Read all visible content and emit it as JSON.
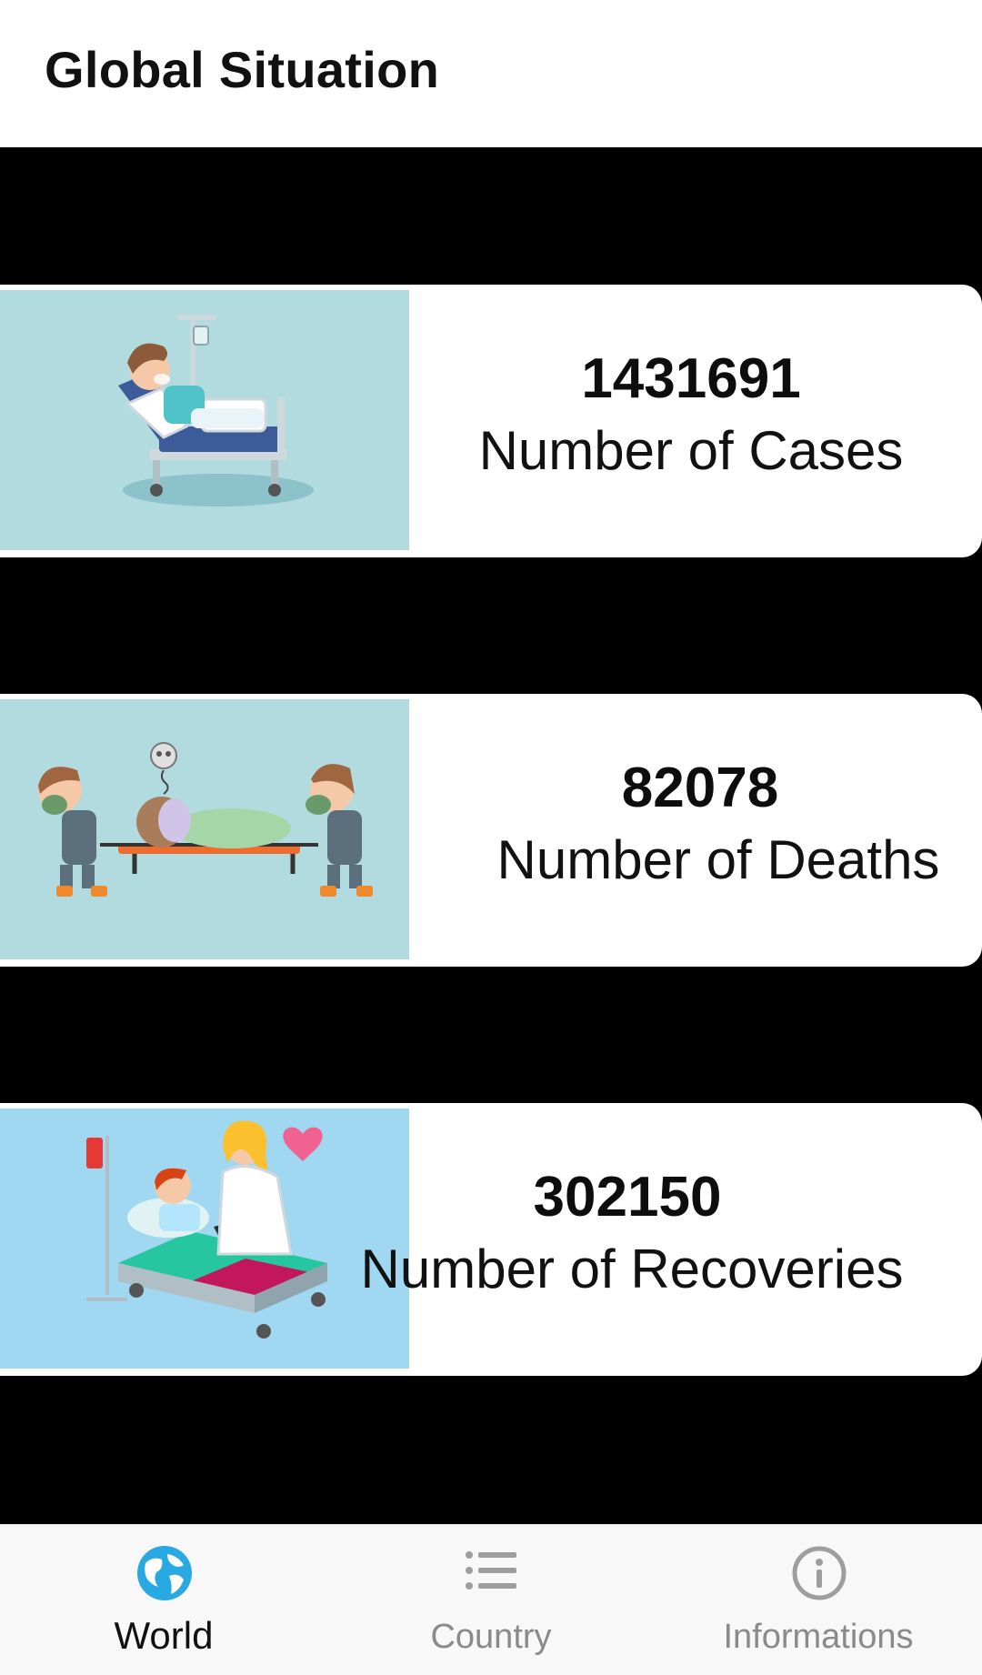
{
  "header": {
    "title": "Global Situation"
  },
  "cards": [
    {
      "value": "1431691",
      "label": "Number of Cases"
    },
    {
      "value": "82078",
      "label": "Number of Deaths"
    },
    {
      "value": "302150",
      "label": "Number of Recoveries"
    }
  ],
  "nav": {
    "items": [
      {
        "label": "World",
        "icon": "globe-icon",
        "active": true
      },
      {
        "label": "Country",
        "icon": "list-icon",
        "active": false
      },
      {
        "label": "Informations",
        "icon": "info-icon",
        "active": false
      }
    ]
  },
  "colors": {
    "active": "#29a9e1",
    "inactive": "#9e9e9e",
    "illustration_bg_1": "#b2dbe0",
    "illustration_bg_2": "#b2dbe0",
    "illustration_bg_3": "#9fd8f0"
  }
}
